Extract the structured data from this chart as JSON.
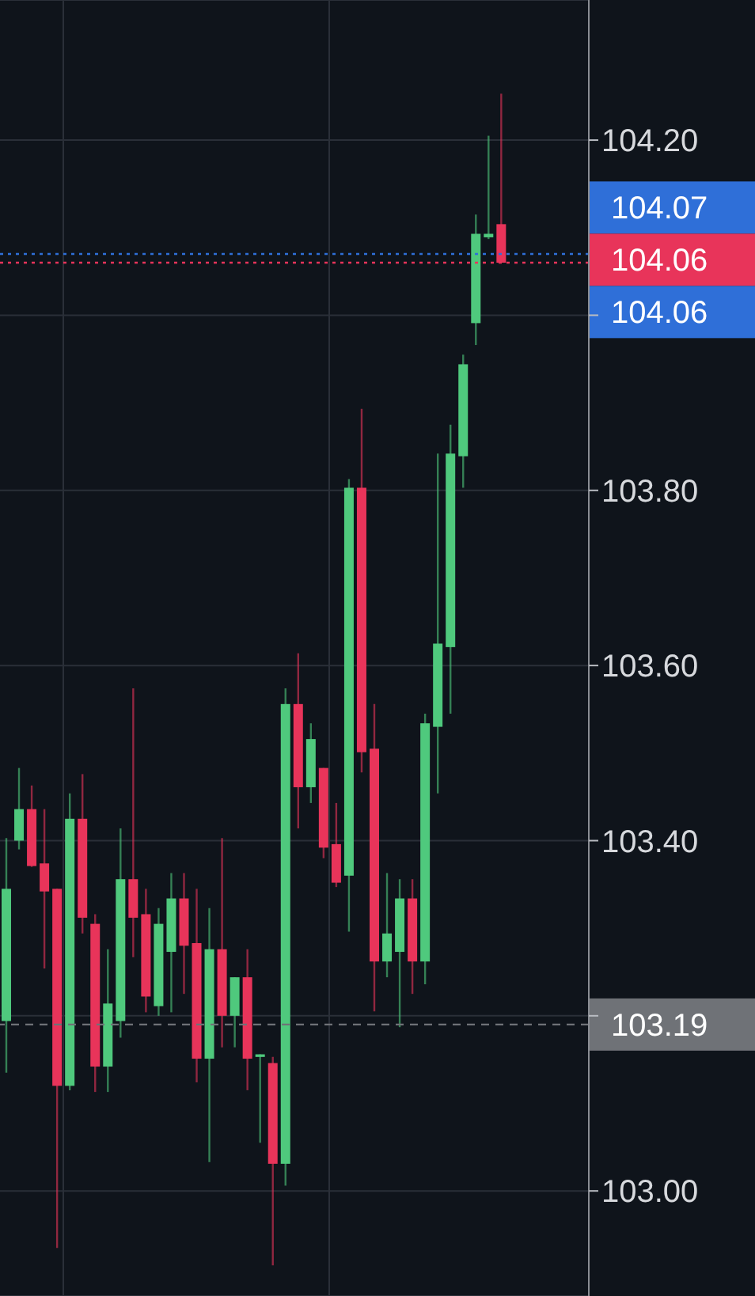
{
  "chart_data": {
    "type": "candlestick",
    "categories": [
      null,
      null,
      null,
      null,
      null,
      null,
      null,
      null,
      null,
      null,
      null,
      null,
      null,
      null,
      null,
      null,
      null,
      null,
      null,
      null,
      null,
      null,
      null,
      null,
      null,
      null,
      null,
      null,
      null,
      null,
      null,
      null,
      null,
      null,
      null,
      null,
      null,
      null,
      null,
      null
    ],
    "ohlc": [
      [
        103.194,
        103.403,
        103.135,
        103.345
      ],
      [
        103.4,
        103.483,
        103.39,
        103.436
      ],
      [
        103.436,
        103.463,
        103.37,
        103.371
      ],
      [
        103.374,
        103.436,
        103.254,
        103.342
      ],
      [
        103.345,
        103.345,
        102.935,
        103.12
      ],
      [
        103.12,
        103.454,
        103.115,
        103.425
      ],
      [
        103.425,
        103.476,
        103.294,
        103.312
      ],
      [
        103.305,
        103.316,
        103.113,
        103.142
      ],
      [
        103.142,
        103.276,
        103.113,
        103.214
      ],
      [
        103.194,
        103.414,
        103.175,
        103.356
      ],
      [
        103.356,
        103.574,
        103.267,
        103.312
      ],
      [
        103.316,
        103.345,
        103.204,
        103.222
      ],
      [
        103.211,
        103.323,
        103.2,
        103.305
      ],
      [
        103.273,
        103.363,
        103.204,
        103.334
      ],
      [
        103.334,
        103.363,
        103.225,
        103.28
      ],
      [
        103.283,
        103.345,
        103.124,
        103.151
      ],
      [
        103.151,
        103.323,
        103.033,
        103.276
      ],
      [
        103.276,
        103.403,
        103.164,
        103.2
      ],
      [
        103.2,
        103.244,
        103.164,
        103.244
      ],
      [
        103.244,
        103.276,
        103.115,
        103.151
      ],
      [
        103.153,
        103.156,
        103.055,
        103.156
      ],
      [
        103.146,
        103.153,
        102.915,
        103.031
      ],
      [
        103.031,
        103.574,
        103.006,
        103.556
      ],
      [
        103.556,
        103.614,
        103.414,
        103.461
      ],
      [
        103.461,
        103.534,
        103.443,
        103.516
      ],
      [
        103.483,
        103.483,
        103.38,
        103.392
      ],
      [
        103.396,
        103.443,
        103.347,
        103.352
      ],
      [
        103.36,
        103.813,
        103.296,
        103.803
      ],
      [
        103.803,
        103.893,
        103.478,
        103.501
      ],
      [
        103.505,
        103.556,
        103.205,
        103.262
      ],
      [
        103.262,
        103.363,
        103.244,
        103.294
      ],
      [
        103.273,
        103.356,
        103.187,
        103.334
      ],
      [
        103.334,
        103.356,
        103.225,
        103.262
      ],
      [
        103.262,
        103.545,
        103.236,
        103.534
      ],
      [
        103.53,
        103.842,
        103.454,
        103.625
      ],
      [
        103.621,
        103.875,
        103.545,
        103.842
      ],
      [
        103.839,
        103.955,
        103.803,
        103.944
      ],
      [
        103.991,
        104.115,
        103.966,
        104.093
      ],
      [
        104.089,
        104.205,
        104.087,
        104.093
      ],
      [
        104.104,
        104.253,
        104.06,
        104.06
      ]
    ],
    "colors": [
      "#4fc97d",
      "#4fc97d",
      "#e8345a",
      "#e8345a",
      "#e8345a",
      "#4fc97d",
      "#e8345a",
      "#e8345a",
      "#4fc97d",
      "#4fc97d",
      "#e8345a",
      "#e8345a",
      "#4fc97d",
      "#4fc97d",
      "#e8345a",
      "#e8345a",
      "#4fc97d",
      "#e8345a",
      "#4fc97d",
      "#e8345a",
      "#4fc97d",
      "#e8345a",
      "#4fc97d",
      "#e8345a",
      "#4fc97d",
      "#e8345a",
      "#e8345a",
      "#4fc97d",
      "#e8345a",
      "#e8345a",
      "#4fc97d",
      "#4fc97d",
      "#e8345a",
      "#4fc97d",
      "#4fc97d",
      "#4fc97d",
      "#4fc97d",
      "#4fc97d",
      "#4fc97d",
      "#e8345a"
    ],
    "ylim": [
      102.88,
      104.36
    ],
    "yticks": [
      {
        "value": 103.0,
        "label": "103.00"
      },
      {
        "value": 103.2,
        "label": null
      },
      {
        "value": 103.4,
        "label": "103.40"
      },
      {
        "value": 103.6,
        "label": "103.60"
      },
      {
        "value": 103.8,
        "label": "103.80"
      },
      {
        "value": 104.0,
        "label": null
      },
      {
        "value": 104.2,
        "label": "104.20"
      }
    ],
    "ref_lines": [
      {
        "axis": "y",
        "value": 104.07,
        "label": "104.07",
        "color": "#2f6fd8",
        "line_style": "dotted"
      },
      {
        "axis": "y",
        "value": 104.06,
        "label": "104.06",
        "color": "#e8345a",
        "line_style": "dotted"
      },
      {
        "axis": "y",
        "value": 103.19,
        "label": "103.19",
        "color": "#6f7277",
        "line_style": "dashed"
      }
    ],
    "annotations": [
      "104.06"
    ],
    "grid": true,
    "legend": false,
    "tick_labels": "y"
  }
}
